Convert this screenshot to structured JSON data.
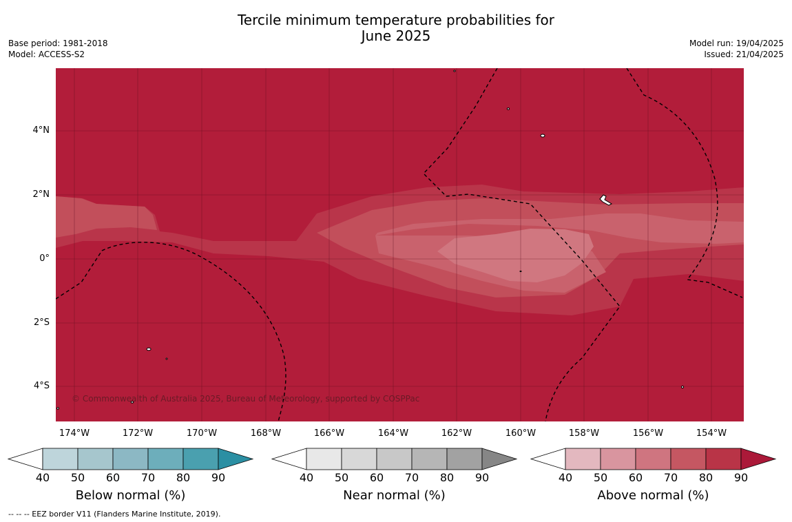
{
  "title_line1": "Tercile minimum temperature probabilities for",
  "title_line2": "June 2025",
  "base_period": "Base period: 1981-2018",
  "model": "Model: ACCESS-S2",
  "model_run": "Model run: 19/04/2025",
  "issued": "Issued: 21/04/2025",
  "copyright": "© Commonwealth of Australia 2025, Bureau of Meteorology, supported by COSPPac",
  "footnote": "--  --  -- EEZ border V11 (Flanders Marine Institute, 2019).",
  "lat_labels": [
    "4°N",
    "2°N",
    "0°",
    "2°S",
    "4°S"
  ],
  "lon_labels": [
    "174°W",
    "172°W",
    "170°W",
    "168°W",
    "166°W",
    "164°W",
    "162°W",
    "160°W",
    "158°W",
    "156°W",
    "154°W"
  ],
  "colorbars": [
    {
      "title": "Below normal (%)",
      "ticks": [
        "40",
        "50",
        "60",
        "70",
        "80",
        "90"
      ],
      "colors": [
        "#bed5db",
        "#a6c6cd",
        "#8cb8c4",
        "#6daebb",
        "#4aa0af"
      ],
      "extend_color": "#2b8fa3"
    },
    {
      "title": "Near normal (%)",
      "ticks": [
        "40",
        "50",
        "60",
        "70",
        "80",
        "90"
      ],
      "colors": [
        "#e8e8e8",
        "#d8d8d8",
        "#c8c8c8",
        "#b6b6b6",
        "#a2a2a2"
      ],
      "extend_color": "#868686"
    },
    {
      "title": "Above normal (%)",
      "ticks": [
        "40",
        "50",
        "60",
        "70",
        "80",
        "90"
      ],
      "colors": [
        "#e3b8bf",
        "#d9959f",
        "#cf7580",
        "#c55762",
        "#b93447"
      ],
      "extend_color": "#ab1939"
    }
  ],
  "map_colors": {
    "above_90": "#b21d3a",
    "above_80": "#b9354a",
    "above_70": "#c24f5b",
    "above_60": "#c9626d",
    "above_50": "#d07780",
    "land": "#ffffff",
    "border": "#000000"
  }
}
